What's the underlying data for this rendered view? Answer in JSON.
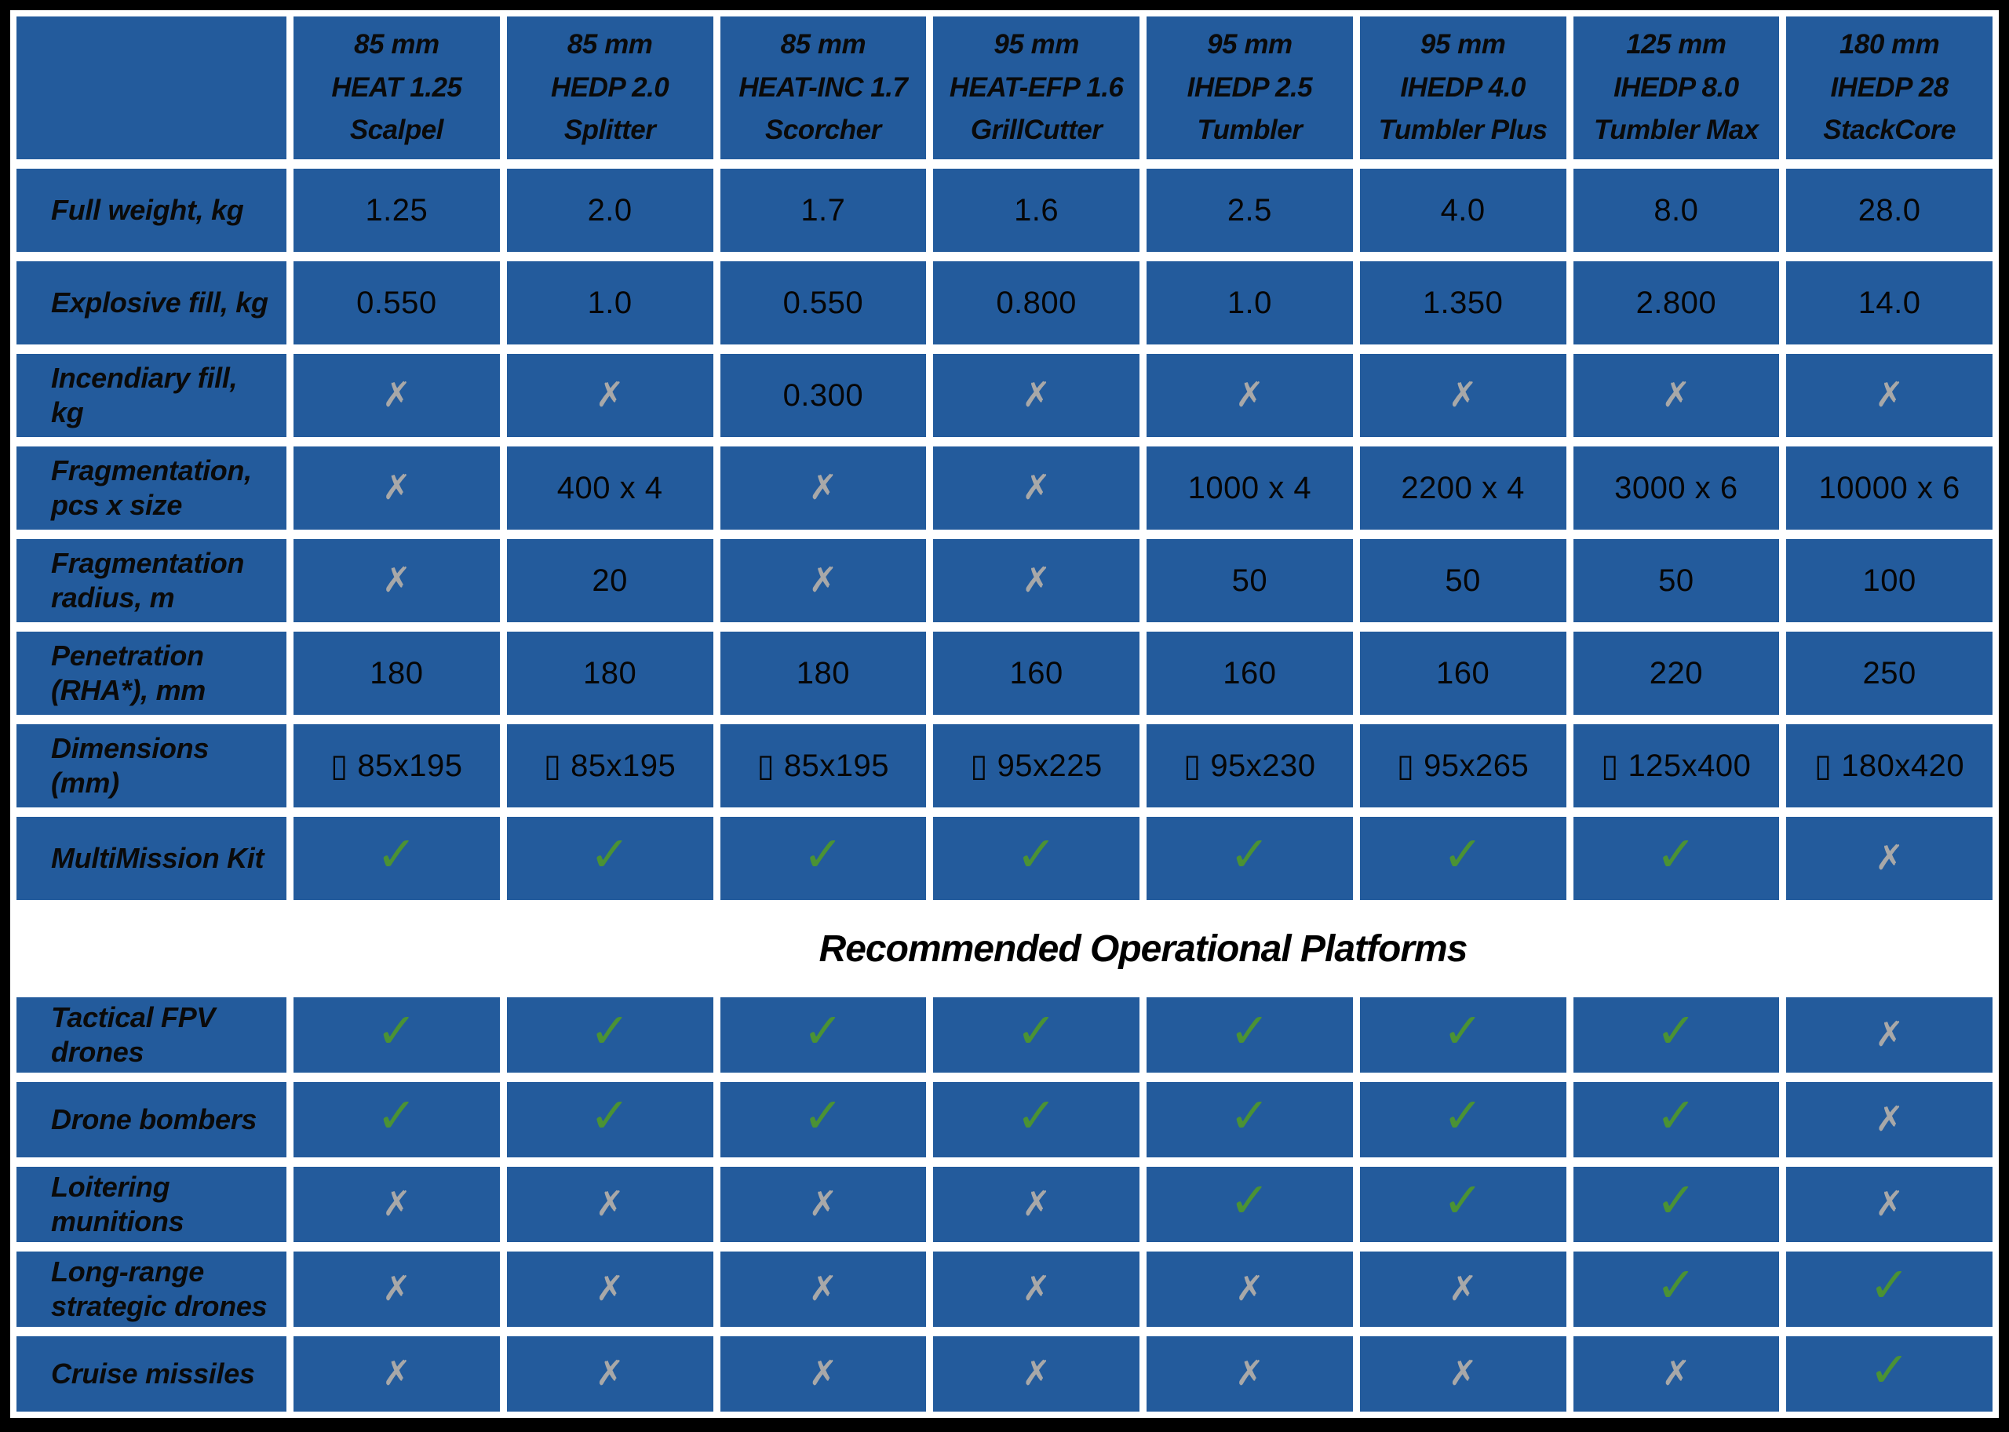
{
  "table": {
    "columns": [
      {
        "lines": [
          "85 mm",
          "HEAT 1.25",
          "Scalpel"
        ]
      },
      {
        "lines": [
          "85 mm",
          "HEDP 2.0",
          "Splitter"
        ]
      },
      {
        "lines": [
          "85 mm",
          "HEAT-INC 1.7",
          "Scorcher"
        ]
      },
      {
        "lines": [
          "95 mm",
          "HEAT-EFP 1.6",
          "GrillCutter"
        ]
      },
      {
        "lines": [
          "95 mm",
          "IHEDP 2.5",
          "Tumbler"
        ]
      },
      {
        "lines": [
          "95 mm",
          "IHEDP 4.0",
          "Tumbler Plus"
        ]
      },
      {
        "lines": [
          "125 mm",
          "IHEDP 8.0",
          "Tumbler Max"
        ]
      },
      {
        "lines": [
          "180 mm",
          "IHEDP 28",
          "StackCore"
        ]
      }
    ],
    "spec_rows": [
      {
        "label": "Full weight, kg",
        "cells": [
          "1.25",
          "2.0",
          "1.7",
          "1.6",
          "2.5",
          "4.0",
          "8.0",
          "28.0"
        ]
      },
      {
        "label": "Explosive fill, kg",
        "cells": [
          "0.550",
          "1.0",
          "0.550",
          "0.800",
          "1.0",
          "1.350",
          "2.800",
          "14.0"
        ]
      },
      {
        "label": "Incendiary fill, kg",
        "cells": [
          "cross",
          "cross",
          "0.300",
          "cross",
          "cross",
          "cross",
          "cross",
          "cross"
        ]
      },
      {
        "label": "Fragmentation, pcs x size",
        "cells": [
          "cross",
          "400 x 4",
          "cross",
          "cross",
          "1000 x 4",
          "2200 x 4",
          "3000 x 6",
          "10000 x 6"
        ]
      },
      {
        "label": "Fragmentation radius, m",
        "cells": [
          "cross",
          "20",
          "cross",
          "cross",
          "50",
          "50",
          "50",
          "100"
        ]
      },
      {
        "label": "Penetration (RHA*), mm",
        "cells": [
          "180",
          "180",
          "180",
          "160",
          "160",
          "160",
          "220",
          "250"
        ]
      },
      {
        "label": "Dimensions (mm)",
        "cells": [
          "▯ 85x195",
          "▯ 85x195",
          "▯ 85x195",
          "▯ 95x225",
          "▯ 95x230",
          "▯ 95x265",
          "▯ 125x400",
          "▯ 180x420"
        ]
      },
      {
        "label": "MultiMission Kit",
        "cells": [
          "check",
          "check",
          "check",
          "check",
          "check",
          "check",
          "check",
          "cross"
        ]
      }
    ],
    "section_header": "Recommended Operational Platforms",
    "platform_rows": [
      {
        "label": "Tactical FPV drones",
        "cells": [
          "check",
          "check",
          "check",
          "check",
          "check",
          "check",
          "check",
          "cross"
        ]
      },
      {
        "label": "Drone bombers",
        "cells": [
          "check",
          "check",
          "check",
          "check",
          "check",
          "check",
          "check",
          "cross"
        ]
      },
      {
        "label": "Loitering munitions",
        "cells": [
          "cross",
          "cross",
          "cross",
          "cross",
          "check",
          "check",
          "check",
          "cross"
        ]
      },
      {
        "label": "Long-range strategic drones",
        "cells": [
          "cross",
          "cross",
          "cross",
          "cross",
          "cross",
          "cross",
          "check",
          "check"
        ]
      },
      {
        "label": "Cruise missiles",
        "cells": [
          "cross",
          "cross",
          "cross",
          "cross",
          "cross",
          "cross",
          "cross",
          "check"
        ]
      }
    ],
    "icons": {
      "check": "✓",
      "cross": "✗"
    },
    "colors": {
      "cell_blue": "#235b9c",
      "check_green": "#4b9234",
      "cross_gray": "#a8a8a8",
      "frame_black": "#000000",
      "gutter_white": "#ffffff",
      "text_black": "#060606"
    }
  }
}
